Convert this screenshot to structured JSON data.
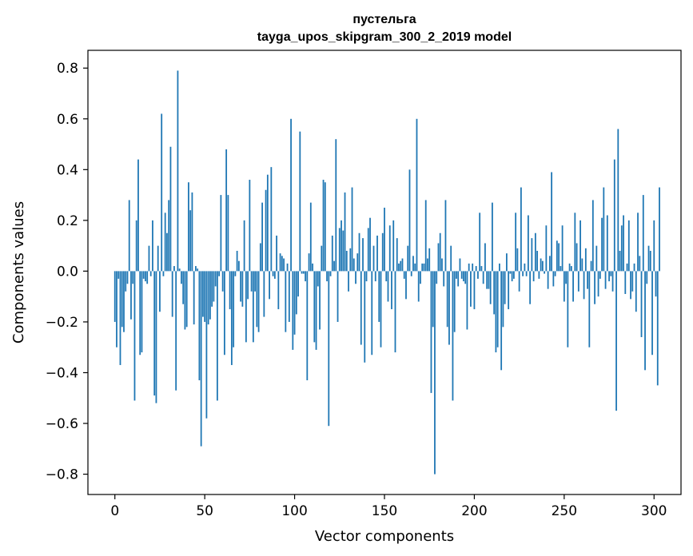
{
  "chart_data": {
    "type": "bar",
    "title": "пустельга",
    "subtitle": "tayga_upos_skipgram_300_2_2019 model",
    "xlabel": "Vector components",
    "ylabel": "Components values",
    "xlim": [
      -15,
      315
    ],
    "ylim": [
      -0.88,
      0.87
    ],
    "xticks": [
      0,
      50,
      100,
      150,
      200,
      250,
      300
    ],
    "xtick_labels": [
      "0",
      "50",
      "100",
      "150",
      "200",
      "250",
      "300"
    ],
    "yticks": [
      -0.8,
      -0.6,
      -0.4,
      -0.2,
      0.0,
      0.2,
      0.4,
      0.6,
      0.8
    ],
    "ytick_labels": [
      "−0.8",
      "−0.6",
      "−0.4",
      "−0.2",
      "0.0",
      "0.2",
      "0.4",
      "0.6",
      "0.8"
    ],
    "grid": false,
    "bar_color": "#1f77b4",
    "values": [
      -0.2,
      -0.3,
      -0.03,
      -0.37,
      -0.22,
      -0.24,
      -0.08,
      -0.05,
      0.28,
      -0.19,
      -0.05,
      -0.51,
      0.2,
      0.44,
      -0.33,
      -0.32,
      -0.03,
      -0.04,
      -0.05,
      0.1,
      -0.02,
      0.2,
      -0.49,
      -0.52,
      0.1,
      -0.16,
      0.62,
      -0.02,
      0.23,
      0.15,
      0.28,
      0.49,
      -0.18,
      0.02,
      -0.47,
      0.79,
      0.01,
      -0.05,
      -0.13,
      -0.23,
      -0.22,
      0.35,
      0.24,
      0.31,
      -0.21,
      0.02,
      0.01,
      -0.43,
      -0.69,
      -0.18,
      -0.2,
      -0.58,
      -0.21,
      -0.19,
      -0.14,
      -0.12,
      -0.06,
      -0.51,
      -0.02,
      0.3,
      -0.08,
      -0.33,
      0.48,
      0.3,
      -0.15,
      -0.37,
      -0.3,
      -0.02,
      0.08,
      0.04,
      -0.12,
      -0.14,
      0.2,
      -0.28,
      -0.11,
      0.36,
      -0.08,
      -0.28,
      -0.08,
      -0.22,
      -0.24,
      0.11,
      0.27,
      -0.18,
      0.32,
      0.38,
      -0.11,
      0.41,
      -0.02,
      -0.03,
      0.14,
      -0.15,
      0.07,
      0.06,
      0.05,
      -0.24,
      0.03,
      -0.2,
      0.6,
      -0.31,
      -0.25,
      -0.17,
      -0.1,
      0.55,
      -0.01,
      -0.01,
      -0.04,
      -0.43,
      0.07,
      0.27,
      0.03,
      -0.28,
      -0.31,
      -0.06,
      -0.23,
      0.1,
      0.36,
      0.35,
      -0.04,
      -0.61,
      -0.02,
      0.14,
      0.04,
      0.52,
      -0.2,
      0.17,
      0.2,
      0.16,
      0.31,
      0.08,
      -0.08,
      0.09,
      0.33,
      0.05,
      -0.05,
      0.07,
      0.15,
      -0.29,
      0.13,
      -0.36,
      -0.04,
      0.17,
      0.21,
      -0.33,
      0.1,
      -0.04,
      0.14,
      -0.2,
      -0.3,
      0.15,
      0.25,
      -0.04,
      -0.12,
      0.18,
      -0.15,
      0.2,
      -0.32,
      0.13,
      0.03,
      0.04,
      0.05,
      -0.03,
      -0.11,
      0.1,
      0.4,
      -0.02,
      0.06,
      0.03,
      0.6,
      -0.12,
      -0.05,
      0.03,
      0.03,
      0.28,
      0.05,
      0.09,
      -0.48,
      -0.22,
      -0.8,
      -0.05,
      0.11,
      0.15,
      0.05,
      -0.06,
      0.28,
      -0.22,
      -0.29,
      0.1,
      -0.51,
      -0.24,
      -0.03,
      -0.06,
      0.05,
      -0.03,
      -0.04,
      -0.05,
      -0.23,
      0.03,
      -0.14,
      0.03,
      -0.15,
      0.02,
      -0.03,
      0.23,
      0.02,
      -0.05,
      0.11,
      -0.07,
      -0.07,
      -0.13,
      0.27,
      -0.17,
      -0.32,
      -0.3,
      0.03,
      -0.39,
      -0.22,
      -0.13,
      0.07,
      -0.15,
      -0.01,
      -0.04,
      -0.03,
      0.23,
      0.09,
      -0.08,
      0.33,
      -0.02,
      0.03,
      -0.02,
      0.22,
      -0.13,
      0.13,
      -0.04,
      0.15,
      0.08,
      -0.03,
      0.05,
      0.04,
      -0.01,
      0.18,
      -0.07,
      0.06,
      0.39,
      -0.06,
      -0.02,
      0.12,
      0.11,
      0.02,
      0.18,
      -0.12,
      -0.05,
      -0.3,
      0.03,
      0.02,
      -0.12,
      0.23,
      0.11,
      -0.08,
      0.2,
      0.05,
      -0.11,
      0.09,
      -0.07,
      -0.3,
      0.04,
      0.28,
      -0.13,
      0.1,
      -0.1,
      -0.03,
      0.21,
      0.33,
      -0.07,
      0.22,
      -0.04,
      -0.02,
      -0.08,
      0.44,
      -0.55,
      0.56,
      0.08,
      0.18,
      0.22,
      -0.09,
      0.03,
      0.2,
      -0.11,
      -0.08,
      0.03,
      -0.16,
      0.23,
      0.06,
      -0.26,
      0.3,
      -0.39,
      -0.05,
      0.1,
      0.08,
      -0.33,
      0.2,
      -0.1,
      -0.45,
      0.33
    ]
  }
}
